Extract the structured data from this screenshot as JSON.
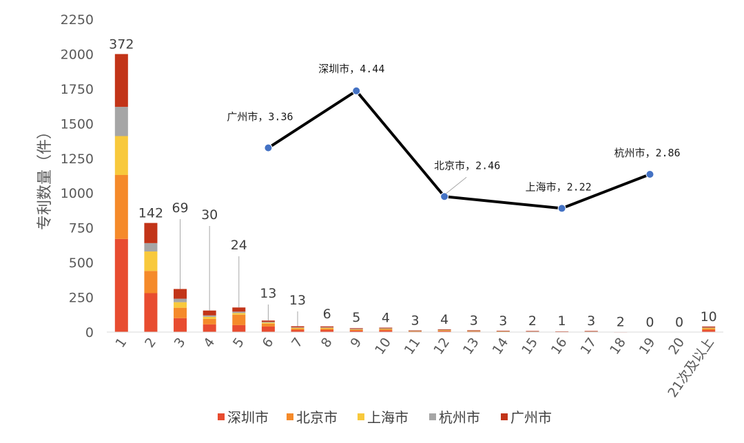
{
  "chart_data": {
    "type": "bar",
    "stacked": true,
    "ylabel": "专利数量（件）",
    "ylim": [
      0,
      2250
    ],
    "yticks": [
      "0",
      "250",
      "500",
      "750",
      "1000",
      "1250",
      "1500",
      "1750",
      "2000",
      "2250"
    ],
    "categories": [
      "1",
      "2",
      "3",
      "4",
      "5",
      "6",
      "7",
      "8",
      "9",
      "10",
      "11",
      "12",
      "13",
      "14",
      "15",
      "16",
      "17",
      "18",
      "19",
      "20",
      "21次及以上"
    ],
    "series": [
      {
        "name": "深圳市",
        "color": "#e84c30",
        "values": [
          670,
          280,
          100,
          55,
          50,
          40,
          15,
          15,
          10,
          12,
          5,
          7,
          5,
          3,
          3,
          2,
          3,
          1,
          0,
          0,
          15
        ]
      },
      {
        "name": "北京市",
        "color": "#f58a2a",
        "values": [
          460,
          160,
          75,
          40,
          75,
          20,
          10,
          10,
          7,
          8,
          2,
          5,
          3,
          2,
          2,
          1,
          2,
          1,
          0,
          0,
          10
        ]
      },
      {
        "name": "上海市",
        "color": "#f8c93c",
        "values": [
          280,
          140,
          40,
          15,
          12,
          8,
          6,
          6,
          4,
          5,
          2,
          3,
          2,
          2,
          1,
          1,
          1,
          0,
          0,
          0,
          5
        ]
      },
      {
        "name": "杭州市",
        "color": "#a6a6a6",
        "values": [
          210,
          60,
          25,
          10,
          10,
          5,
          3,
          3,
          2,
          2,
          1,
          2,
          1,
          1,
          1,
          0,
          1,
          0,
          0,
          0,
          3
        ]
      },
      {
        "name": "广州市",
        "color": "#c23418",
        "values": [
          380,
          145,
          70,
          35,
          30,
          10,
          8,
          7,
          5,
          5,
          2,
          3,
          2,
          1,
          1,
          1,
          1,
          0,
          0,
          0,
          7
        ]
      }
    ],
    "data_labels": [
      "372",
      "142",
      "69",
      "30",
      "24",
      "13",
      "13",
      "6",
      "5",
      "4",
      "3",
      "4",
      "3",
      "3",
      "2",
      "1",
      "3",
      "2",
      "0",
      "0",
      "10"
    ],
    "overlay_line": {
      "color": "#000000",
      "marker_color": "#4472c4",
      "points": [
        {
          "x": "6",
          "y": 1325,
          "label": "广州市，3.36"
        },
        {
          "x": "9",
          "y": 1735,
          "label": "深圳市，4.44"
        },
        {
          "x": "12",
          "y": 975,
          "label": "北京市，2.46"
        },
        {
          "x": "16",
          "y": 890,
          "label": "上海市，2.22"
        },
        {
          "x": "19",
          "y": 1135,
          "label": "杭州市，2.86"
        }
      ]
    },
    "legend_position": "bottom",
    "grid": false
  }
}
